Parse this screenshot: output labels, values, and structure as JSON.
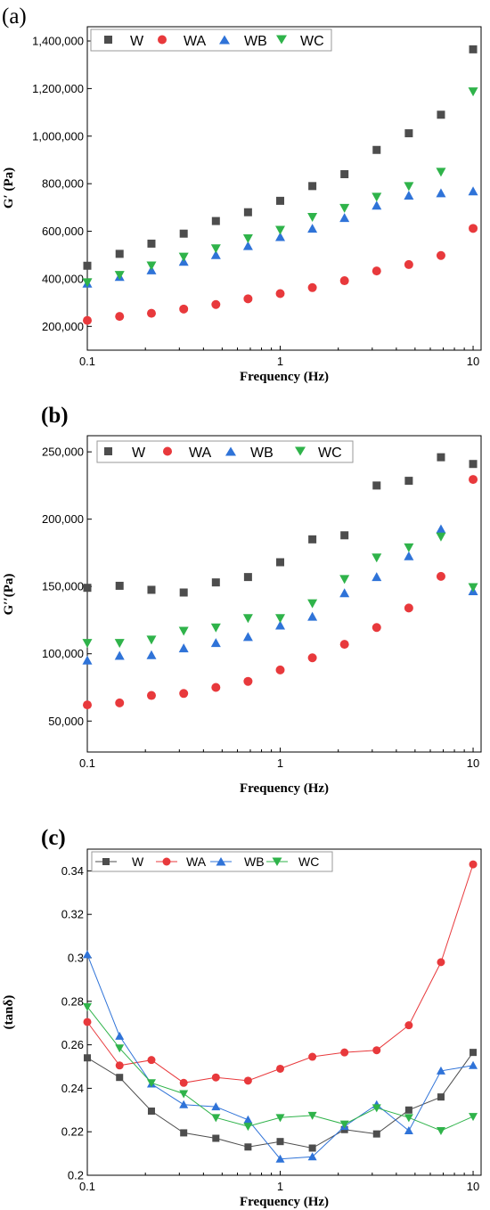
{
  "chart_data": [
    {
      "type": "scatter",
      "panel_label": "(a)",
      "xlabel": "Frequency (Hz)",
      "ylabel": "G′ (Pa)",
      "xscale": "log",
      "xlim": [
        0.1,
        11
      ],
      "ylim": [
        100000,
        1460000
      ],
      "xticks": [
        0.1,
        1,
        10
      ],
      "xtick_labels": [
        "0.1",
        "1",
        "10"
      ],
      "yticks": [
        200000,
        400000,
        600000,
        800000,
        1000000,
        1200000,
        1400000
      ],
      "ytick_labels": [
        "200,000",
        "400,000",
        "600,000",
        "800,000",
        "1,000,000",
        "1,200,000",
        "1,400,000"
      ],
      "legend": "top-left",
      "grid": false,
      "x": [
        0.1,
        0.147,
        0.215,
        0.316,
        0.464,
        0.681,
        1,
        1.468,
        2.154,
        3.162,
        4.642,
        6.813,
        10
      ],
      "series": [
        {
          "name": "W",
          "marker": "square",
          "color": "#4d4d4d",
          "values": [
            455000,
            505000,
            548000,
            590000,
            643000,
            680000,
            728000,
            790000,
            840000,
            942000,
            1012000,
            1090000,
            1365000
          ]
        },
        {
          "name": "WA",
          "marker": "circle",
          "color": "#e8393c",
          "values": [
            225000,
            242000,
            255000,
            273000,
            292000,
            316000,
            338000,
            363000,
            392000,
            433000,
            460000,
            498000,
            612000
          ]
        },
        {
          "name": "WB",
          "marker": "triangle-up",
          "color": "#2f73d8",
          "values": [
            380000,
            408000,
            436000,
            472000,
            500000,
            538000,
            576000,
            611000,
            656000,
            708000,
            750000,
            760000,
            768000
          ]
        },
        {
          "name": "WC",
          "marker": "triangle-down",
          "color": "#2fb34a",
          "values": [
            385000,
            416000,
            456000,
            493000,
            528000,
            570000,
            606000,
            660000,
            698000,
            745000,
            790000,
            850000,
            1188000
          ]
        }
      ]
    },
    {
      "type": "scatter",
      "panel_label": "(b)",
      "xlabel": "Frequency (Hz)",
      "ylabel": "G′′(Pa)",
      "xscale": "log",
      "xlim": [
        0.1,
        11
      ],
      "ylim": [
        27000,
        262000
      ],
      "xticks": [
        0.1,
        1,
        10
      ],
      "xtick_labels": [
        "0.1",
        "1",
        "10"
      ],
      "yticks": [
        50000,
        100000,
        150000,
        200000,
        250000
      ],
      "ytick_labels": [
        "50,000",
        "100,000",
        "150,000",
        "200,000",
        "250,000"
      ],
      "legend": "top",
      "grid": false,
      "x": [
        0.1,
        0.147,
        0.215,
        0.316,
        0.464,
        0.681,
        1,
        1.468,
        2.154,
        3.162,
        4.642,
        6.813,
        10
      ],
      "series": [
        {
          "name": "W",
          "marker": "square",
          "color": "#4d4d4d",
          "values": [
            149000,
            150500,
            147500,
            145500,
            153000,
            157000,
            168000,
            185000,
            188000,
            225000,
            228500,
            246000,
            241000
          ]
        },
        {
          "name": "WA",
          "marker": "circle",
          "color": "#e8393c",
          "values": [
            62000,
            63500,
            69000,
            70500,
            75000,
            79500,
            88000,
            97000,
            107000,
            119500,
            134000,
            157500,
            229500
          ]
        },
        {
          "name": "WB",
          "marker": "triangle-up",
          "color": "#2f73d8",
          "values": [
            95000,
            98500,
            99000,
            104000,
            108000,
            112500,
            121000,
            127500,
            145000,
            157000,
            172500,
            192500,
            146500
          ]
        },
        {
          "name": "WC",
          "marker": "triangle-down",
          "color": "#2fb34a",
          "values": [
            108000,
            108000,
            110500,
            117000,
            119500,
            126500,
            126500,
            137500,
            155500,
            171500,
            179000,
            187000,
            149500
          ]
        }
      ]
    },
    {
      "type": "line",
      "panel_label": "(c)",
      "xlabel": "Frequency (Hz)",
      "ylabel": "(tanδ)",
      "xscale": "log",
      "xlim": [
        0.1,
        11
      ],
      "ylim": [
        0.2,
        0.35
      ],
      "xticks": [
        0.1,
        1,
        10
      ],
      "xtick_labels": [
        "0.1",
        "1",
        "10"
      ],
      "yticks": [
        0.2,
        0.22,
        0.24,
        0.26,
        0.28,
        0.3,
        0.32,
        0.34
      ],
      "ytick_labels": [
        "0.2",
        "0.22",
        "0.24",
        "0.26",
        "0.28",
        "0.3",
        "0.32",
        "0.34"
      ],
      "legend": "top",
      "grid": false,
      "x": [
        0.1,
        0.147,
        0.215,
        0.316,
        0.464,
        0.681,
        1,
        1.468,
        2.154,
        3.162,
        4.642,
        6.813,
        10
      ],
      "series": [
        {
          "name": "W",
          "marker": "square",
          "color": "#4d4d4d",
          "values": [
            0.254,
            0.245,
            0.2295,
            0.2195,
            0.217,
            0.213,
            0.2155,
            0.2125,
            0.221,
            0.219,
            0.23,
            0.236,
            0.2565
          ]
        },
        {
          "name": "WA",
          "marker": "circle",
          "color": "#e8393c",
          "values": [
            0.2705,
            0.2505,
            0.253,
            0.2425,
            0.245,
            0.2435,
            0.249,
            0.2545,
            0.2565,
            0.2575,
            0.269,
            0.298,
            0.343
          ]
        },
        {
          "name": "WB",
          "marker": "triangle-up",
          "color": "#2f73d8",
          "values": [
            0.3015,
            0.264,
            0.242,
            0.2325,
            0.2315,
            0.2255,
            0.2075,
            0.2085,
            0.2225,
            0.2325,
            0.2205,
            0.248,
            0.2505
          ]
        },
        {
          "name": "WC",
          "marker": "triangle-down",
          "color": "#2fb34a",
          "values": [
            0.2775,
            0.2585,
            0.2425,
            0.2375,
            0.2265,
            0.2225,
            0.2265,
            0.2275,
            0.2235,
            0.231,
            0.2265,
            0.2205,
            0.227
          ]
        }
      ]
    }
  ]
}
